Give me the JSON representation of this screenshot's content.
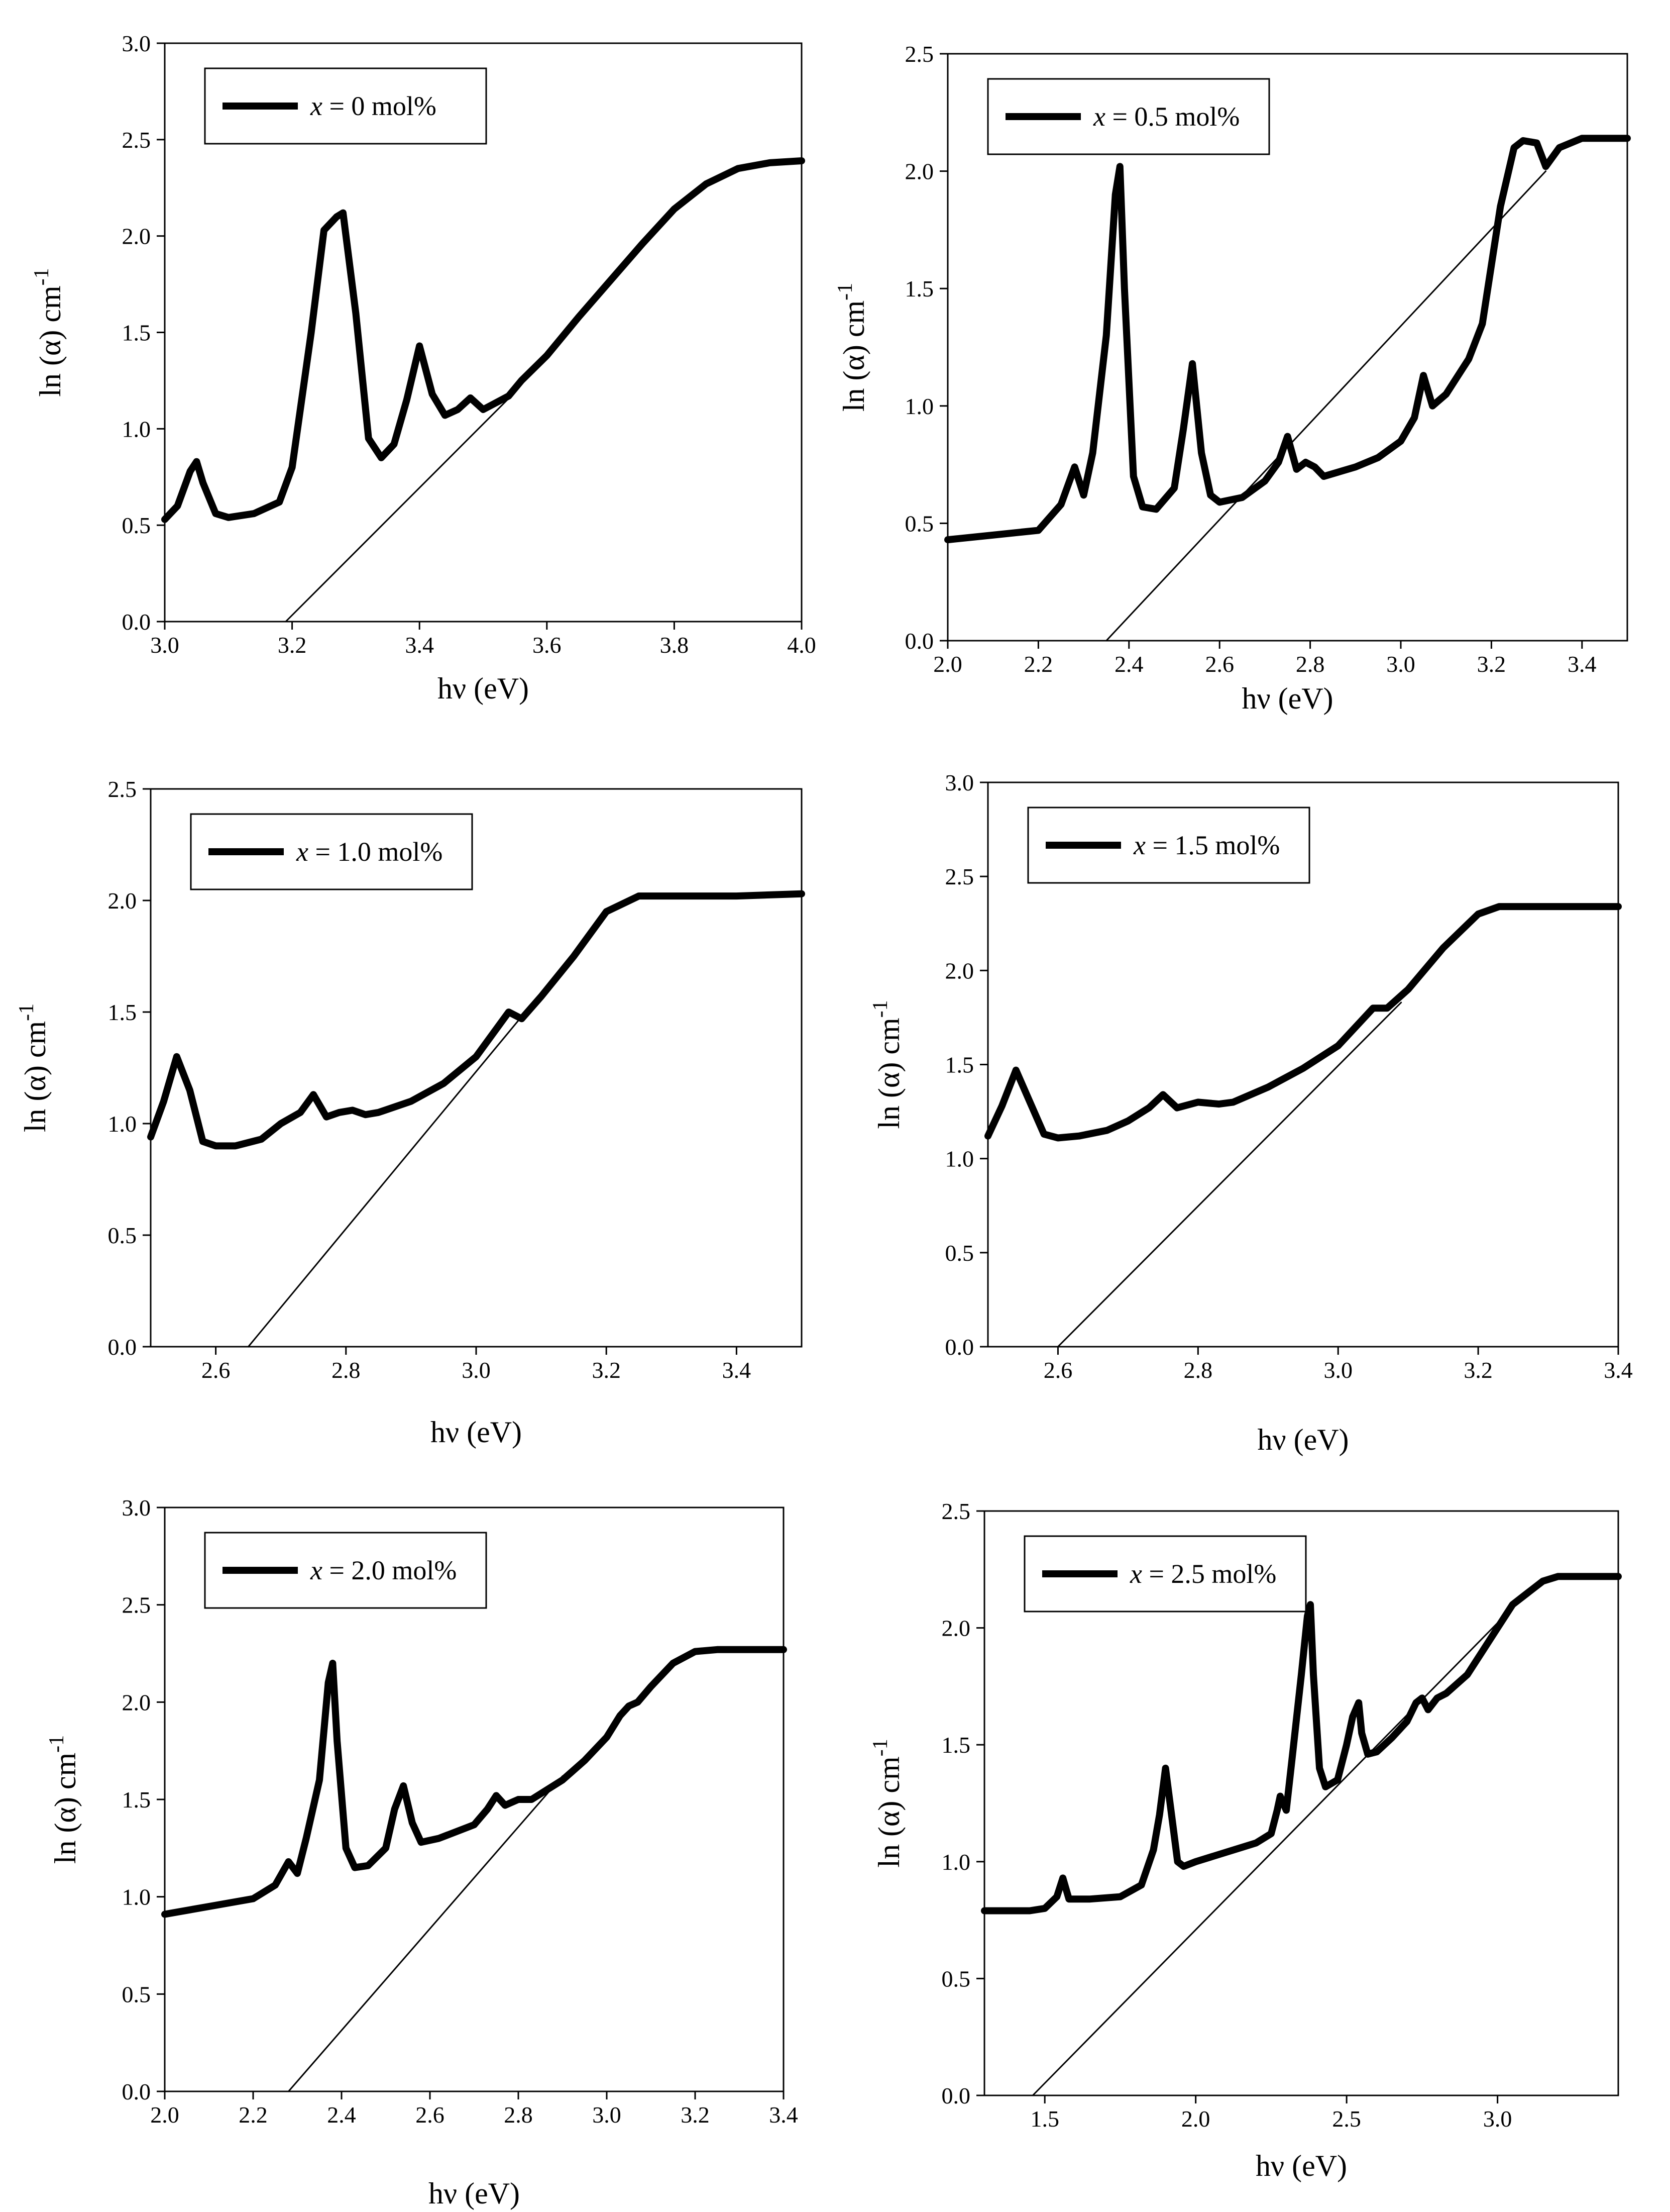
{
  "chart_data": [
    {
      "type": "line",
      "panel": "top-left",
      "xlabel": "hν (eV)",
      "ylabel_main": "ln (α) cm",
      "ylabel_sup": "-1",
      "xlim": [
        3.0,
        4.0
      ],
      "ylim": [
        0.0,
        3.0
      ],
      "x_ticks": [
        3.0,
        3.2,
        3.4,
        3.6,
        3.8,
        4.0
      ],
      "x_tick_labels": [
        "3.0",
        "3.2",
        "3.4",
        "3.6",
        "3.8",
        "4.0"
      ],
      "y_ticks": [
        0.0,
        0.5,
        1.0,
        1.5,
        2.0,
        2.5,
        3.0
      ],
      "y_tick_labels": [
        "0.0",
        "0.5",
        "1.0",
        "1.5",
        "2.0",
        "2.5",
        "3.0"
      ],
      "legend": {
        "var": "x",
        "rest": " = 0 mol%",
        "position": "top-left"
      },
      "series": [
        {
          "name": "x = 0 mol%",
          "x": [
            3.0,
            3.02,
            3.04,
            3.05,
            3.06,
            3.08,
            3.1,
            3.14,
            3.18,
            3.2,
            3.23,
            3.25,
            3.27,
            3.28,
            3.3,
            3.32,
            3.34,
            3.36,
            3.38,
            3.4,
            3.42,
            3.44,
            3.46,
            3.48,
            3.5,
            3.54,
            3.56,
            3.6,
            3.65,
            3.7,
            3.75,
            3.8,
            3.85,
            3.9,
            3.95,
            4.0
          ],
          "y": [
            0.53,
            0.6,
            0.78,
            0.83,
            0.72,
            0.56,
            0.54,
            0.56,
            0.62,
            0.8,
            1.5,
            2.03,
            2.1,
            2.12,
            1.6,
            0.95,
            0.85,
            0.92,
            1.15,
            1.43,
            1.18,
            1.07,
            1.1,
            1.16,
            1.1,
            1.17,
            1.25,
            1.38,
            1.58,
            1.77,
            1.96,
            2.14,
            2.27,
            2.35,
            2.38,
            2.39
          ]
        },
        {
          "name": "linear fit",
          "x": [
            3.19,
            3.55
          ],
          "y": [
            0.0,
            1.19
          ]
        }
      ]
    },
    {
      "type": "line",
      "panel": "top-right",
      "xlabel": "hν (eV)",
      "ylabel_main": "ln (α) cm",
      "ylabel_sup": "-1",
      "xlim": [
        2.0,
        3.5
      ],
      "ylim": [
        0.0,
        2.5
      ],
      "x_ticks": [
        2.0,
        2.2,
        2.4,
        2.6,
        2.8,
        3.0,
        3.2,
        3.4
      ],
      "x_tick_labels": [
        "2.0",
        "2.2",
        "2.4",
        "2.6",
        "2.8",
        "3.0",
        "3.2",
        "3.4"
      ],
      "y_ticks": [
        0.0,
        0.5,
        1.0,
        1.5,
        2.0,
        2.5
      ],
      "y_tick_labels": [
        "0.0",
        "0.5",
        "1.0",
        "1.5",
        "2.0",
        "2.5"
      ],
      "legend": {
        "var": "x",
        "rest": " = 0.5 mol%",
        "position": "top-left"
      },
      "series": [
        {
          "name": "x = 0.5 mol%",
          "x": [
            2.0,
            2.1,
            2.2,
            2.25,
            2.28,
            2.3,
            2.32,
            2.35,
            2.37,
            2.38,
            2.39,
            2.41,
            2.43,
            2.46,
            2.5,
            2.52,
            2.54,
            2.56,
            2.58,
            2.6,
            2.65,
            2.7,
            2.73,
            2.75,
            2.77,
            2.79,
            2.81,
            2.83,
            2.9,
            2.95,
            3.0,
            3.03,
            3.05,
            3.07,
            3.1,
            3.15,
            3.18,
            3.2,
            3.22,
            3.25,
            3.27,
            3.3,
            3.32,
            3.35,
            3.4,
            3.5
          ],
          "y": [
            0.43,
            0.45,
            0.47,
            0.58,
            0.74,
            0.62,
            0.8,
            1.3,
            1.9,
            2.02,
            1.5,
            0.7,
            0.57,
            0.56,
            0.65,
            0.9,
            1.18,
            0.8,
            0.62,
            0.59,
            0.61,
            0.68,
            0.76,
            0.87,
            0.73,
            0.76,
            0.74,
            0.7,
            0.74,
            0.78,
            0.85,
            0.95,
            1.13,
            1.0,
            1.05,
            1.2,
            1.35,
            1.6,
            1.85,
            2.1,
            2.13,
            2.12,
            2.02,
            2.1,
            2.14,
            2.14
          ]
        },
        {
          "name": "linear fit",
          "x": [
            2.35,
            3.32
          ],
          "y": [
            0.0,
            2.0
          ]
        }
      ]
    },
    {
      "type": "line",
      "panel": "middle-left",
      "xlabel": "hν (eV)",
      "ylabel_main": "ln (α) cm",
      "ylabel_sup": "-1",
      "xlim": [
        2.5,
        3.5
      ],
      "ylim": [
        0.0,
        2.5
      ],
      "x_ticks": [
        2.6,
        2.8,
        3.0,
        3.2,
        3.4
      ],
      "x_tick_labels": [
        "2.6",
        "2.8",
        "3.0",
        "3.2",
        "3.4"
      ],
      "y_ticks": [
        0.0,
        0.5,
        1.0,
        1.5,
        2.0,
        2.5
      ],
      "y_tick_labels": [
        "0.0",
        "0.5",
        "1.0",
        "1.5",
        "2.0",
        "2.5"
      ],
      "legend": {
        "var": "x",
        "rest": " = 1.0 mol%",
        "position": "top-left"
      },
      "series": [
        {
          "name": "x = 1.0 mol%",
          "x": [
            2.5,
            2.52,
            2.54,
            2.56,
            2.58,
            2.6,
            2.63,
            2.67,
            2.7,
            2.73,
            2.75,
            2.77,
            2.79,
            2.81,
            2.83,
            2.85,
            2.9,
            2.95,
            3.0,
            3.03,
            3.05,
            3.07,
            3.1,
            3.15,
            3.2,
            3.25,
            3.3,
            3.4,
            3.5
          ],
          "y": [
            0.94,
            1.1,
            1.3,
            1.15,
            0.92,
            0.9,
            0.9,
            0.93,
            1.0,
            1.05,
            1.13,
            1.03,
            1.05,
            1.06,
            1.04,
            1.05,
            1.1,
            1.18,
            1.3,
            1.42,
            1.5,
            1.47,
            1.57,
            1.75,
            1.95,
            2.02,
            2.02,
            2.02,
            2.03
          ]
        },
        {
          "name": "linear fit",
          "x": [
            2.65,
            3.07
          ],
          "y": [
            0.0,
            1.48
          ]
        }
      ]
    },
    {
      "type": "line",
      "panel": "middle-right",
      "xlabel": "hν (eV)",
      "ylabel_main": "ln (α) cm",
      "ylabel_sup": "-1",
      "xlim": [
        2.5,
        3.4
      ],
      "ylim": [
        0.0,
        3.0
      ],
      "x_ticks": [
        2.6,
        2.8,
        3.0,
        3.2,
        3.4
      ],
      "x_tick_labels": [
        "2.6",
        "2.8",
        "3.0",
        "3.2",
        "3.4"
      ],
      "y_ticks": [
        0.0,
        0.5,
        1.0,
        1.5,
        2.0,
        2.5,
        3.0
      ],
      "y_tick_labels": [
        "0.0",
        "0.5",
        "1.0",
        "1.5",
        "2.0",
        "2.5",
        "3.0"
      ],
      "legend": {
        "var": "x",
        "rest": " = 1.5 mol%",
        "position": "top-left"
      },
      "series": [
        {
          "name": "x = 1.5 mol%",
          "x": [
            2.5,
            2.52,
            2.54,
            2.56,
            2.58,
            2.6,
            2.63,
            2.67,
            2.7,
            2.73,
            2.75,
            2.77,
            2.8,
            2.83,
            2.85,
            2.9,
            2.95,
            3.0,
            3.03,
            3.05,
            3.07,
            3.1,
            3.15,
            3.2,
            3.23,
            3.3,
            3.4
          ],
          "y": [
            1.12,
            1.28,
            1.47,
            1.3,
            1.13,
            1.11,
            1.12,
            1.15,
            1.2,
            1.27,
            1.34,
            1.27,
            1.3,
            1.29,
            1.3,
            1.38,
            1.48,
            1.6,
            1.72,
            1.8,
            1.8,
            1.9,
            2.12,
            2.3,
            2.34,
            2.34,
            2.34
          ]
        },
        {
          "name": "linear fit",
          "x": [
            2.6,
            3.09
          ],
          "y": [
            0.0,
            1.83
          ]
        }
      ]
    },
    {
      "type": "line",
      "panel": "bottom-left",
      "xlabel": "hν (eV)",
      "ylabel_main": "ln (α) cm",
      "ylabel_sup": "-1",
      "xlim": [
        2.0,
        3.4
      ],
      "ylim": [
        0.0,
        3.0
      ],
      "x_ticks": [
        2.0,
        2.2,
        2.4,
        2.6,
        2.8,
        3.0,
        3.2,
        3.4
      ],
      "x_tick_labels": [
        "2.0",
        "2.2",
        "2.4",
        "2.6",
        "2.8",
        "3.0",
        "3.2",
        "3.4"
      ],
      "y_ticks": [
        0.0,
        0.5,
        1.0,
        1.5,
        2.0,
        2.5,
        3.0
      ],
      "y_tick_labels": [
        "0.0",
        "0.5",
        "1.0",
        "1.5",
        "2.0",
        "2.5",
        "3.0"
      ],
      "legend": {
        "var": "x",
        "rest": " = 2.0 mol%",
        "position": "top-left"
      },
      "series": [
        {
          "name": "x = 2.0 mol%",
          "x": [
            2.0,
            2.1,
            2.2,
            2.25,
            2.28,
            2.3,
            2.32,
            2.35,
            2.37,
            2.38,
            2.39,
            2.41,
            2.43,
            2.46,
            2.5,
            2.52,
            2.54,
            2.56,
            2.58,
            2.62,
            2.7,
            2.73,
            2.75,
            2.77,
            2.8,
            2.83,
            2.9,
            2.95,
            3.0,
            3.03,
            3.05,
            3.07,
            3.1,
            3.15,
            3.2,
            3.25,
            3.3,
            3.4
          ],
          "y": [
            0.91,
            0.95,
            0.99,
            1.06,
            1.18,
            1.12,
            1.3,
            1.6,
            2.1,
            2.2,
            1.8,
            1.25,
            1.15,
            1.16,
            1.25,
            1.45,
            1.57,
            1.38,
            1.28,
            1.3,
            1.37,
            1.45,
            1.52,
            1.47,
            1.5,
            1.5,
            1.6,
            1.7,
            1.82,
            1.93,
            1.98,
            2.0,
            2.08,
            2.2,
            2.26,
            2.27,
            2.27,
            2.27
          ]
        },
        {
          "name": "linear fit",
          "x": [
            2.28,
            2.9
          ],
          "y": [
            0.0,
            1.62
          ]
        }
      ]
    },
    {
      "type": "line",
      "panel": "bottom-right",
      "xlabel": "hν (eV)",
      "ylabel_main": "ln (α) cm",
      "ylabel_sup": "-1",
      "xlim": [
        1.3,
        3.4
      ],
      "ylim": [
        0.0,
        2.5
      ],
      "x_ticks": [
        1.5,
        2.0,
        2.5,
        3.0
      ],
      "x_tick_labels": [
        "1.5",
        "2.0",
        "2.5",
        "3.0"
      ],
      "y_ticks": [
        0.0,
        0.5,
        1.0,
        1.5,
        2.0,
        2.5
      ],
      "y_tick_labels": [
        "0.0",
        "0.5",
        "1.0",
        "1.5",
        "2.0",
        "2.5"
      ],
      "legend": {
        "var": "x",
        "rest": " = 2.5 mol%",
        "position": "top-left"
      },
      "series": [
        {
          "name": "x = 2.5 mol%",
          "x": [
            1.3,
            1.45,
            1.5,
            1.54,
            1.56,
            1.58,
            1.65,
            1.75,
            1.82,
            1.86,
            1.88,
            1.9,
            1.92,
            1.94,
            1.96,
            2.0,
            2.1,
            2.2,
            2.25,
            2.27,
            2.28,
            2.3,
            2.32,
            2.35,
            2.37,
            2.38,
            2.39,
            2.41,
            2.43,
            2.47,
            2.5,
            2.52,
            2.54,
            2.55,
            2.57,
            2.6,
            2.65,
            2.7,
            2.73,
            2.75,
            2.77,
            2.8,
            2.83,
            2.9,
            2.95,
            3.0,
            3.05,
            3.1,
            3.15,
            3.2,
            3.3,
            3.4
          ],
          "y": [
            0.79,
            0.79,
            0.8,
            0.85,
            0.93,
            0.84,
            0.84,
            0.85,
            0.9,
            1.05,
            1.2,
            1.4,
            1.2,
            1.0,
            0.98,
            1.0,
            1.04,
            1.08,
            1.12,
            1.22,
            1.28,
            1.22,
            1.45,
            1.8,
            2.05,
            2.1,
            1.8,
            1.4,
            1.32,
            1.35,
            1.5,
            1.62,
            1.68,
            1.55,
            1.46,
            1.47,
            1.53,
            1.6,
            1.68,
            1.7,
            1.65,
            1.7,
            1.72,
            1.8,
            1.9,
            2.0,
            2.1,
            2.15,
            2.2,
            2.22,
            2.22,
            2.22
          ]
        },
        {
          "name": "linear fit",
          "x": [
            1.46,
            3.06
          ],
          "y": [
            0.0,
            2.1
          ]
        }
      ]
    }
  ]
}
